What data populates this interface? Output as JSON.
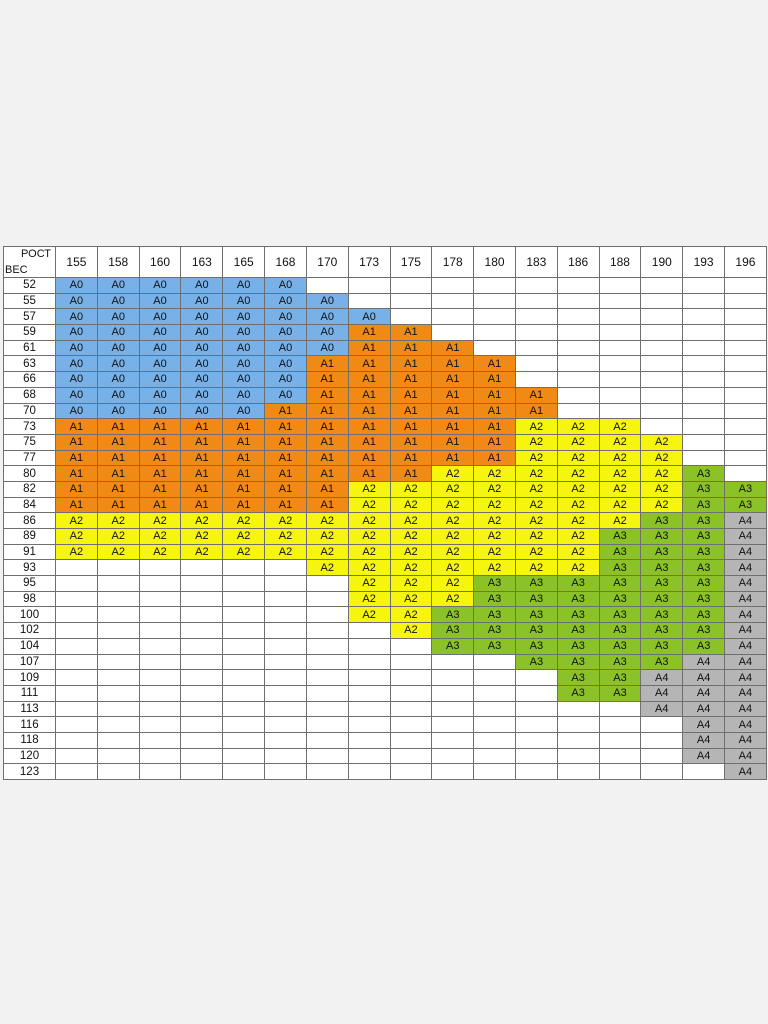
{
  "table": {
    "corner_top": "РОСТ",
    "corner_bottom": "ВЕС",
    "heights": [
      "155",
      "158",
      "160",
      "163",
      "165",
      "168",
      "170",
      "173",
      "175",
      "178",
      "180",
      "183",
      "186",
      "188",
      "190",
      "193",
      "196"
    ],
    "rows": [
      {
        "weight": "52",
        "cells": [
          "A0",
          "A0",
          "A0",
          "A0",
          "A0",
          "A0",
          "",
          "",
          "",
          "",
          "",
          "",
          "",
          "",
          "",
          "",
          ""
        ]
      },
      {
        "weight": "55",
        "cells": [
          "A0",
          "A0",
          "A0",
          "A0",
          "A0",
          "A0",
          "A0",
          "",
          "",
          "",
          "",
          "",
          "",
          "",
          "",
          "",
          ""
        ]
      },
      {
        "weight": "57",
        "cells": [
          "A0",
          "A0",
          "A0",
          "A0",
          "A0",
          "A0",
          "A0",
          "A0",
          "",
          "",
          "",
          "",
          "",
          "",
          "",
          "",
          ""
        ]
      },
      {
        "weight": "59",
        "cells": [
          "A0",
          "A0",
          "A0",
          "A0",
          "A0",
          "A0",
          "A0",
          "A1",
          "A1",
          "",
          "",
          "",
          "",
          "",
          "",
          "",
          ""
        ]
      },
      {
        "weight": "61",
        "cells": [
          "A0",
          "A0",
          "A0",
          "A0",
          "A0",
          "A0",
          "A0",
          "A1",
          "A1",
          "A1",
          "",
          "",
          "",
          "",
          "",
          "",
          ""
        ]
      },
      {
        "weight": "63",
        "cells": [
          "A0",
          "A0",
          "A0",
          "A0",
          "A0",
          "A0",
          "A1",
          "A1",
          "A1",
          "A1",
          "A1",
          "",
          "",
          "",
          "",
          "",
          ""
        ]
      },
      {
        "weight": "66",
        "cells": [
          "A0",
          "A0",
          "A0",
          "A0",
          "A0",
          "A0",
          "A1",
          "A1",
          "A1",
          "A1",
          "A1",
          "",
          "",
          "",
          "",
          "",
          ""
        ]
      },
      {
        "weight": "68",
        "cells": [
          "A0",
          "A0",
          "A0",
          "A0",
          "A0",
          "A0",
          "A1",
          "A1",
          "A1",
          "A1",
          "A1",
          "A1",
          "",
          "",
          "",
          "",
          ""
        ]
      },
      {
        "weight": "70",
        "cells": [
          "A0",
          "A0",
          "A0",
          "A0",
          "A0",
          "A1",
          "A1",
          "A1",
          "A1",
          "A1",
          "A1",
          "A1",
          "",
          "",
          "",
          "",
          ""
        ]
      },
      {
        "weight": "73",
        "cells": [
          "A1",
          "A1",
          "A1",
          "A1",
          "A1",
          "A1",
          "A1",
          "A1",
          "A1",
          "A1",
          "A1",
          "A2",
          "A2",
          "A2",
          "",
          "",
          ""
        ]
      },
      {
        "weight": "75",
        "cells": [
          "A1",
          "A1",
          "A1",
          "A1",
          "A1",
          "A1",
          "A1",
          "A1",
          "A1",
          "A1",
          "A1",
          "A2",
          "A2",
          "A2",
          "A2",
          "",
          ""
        ]
      },
      {
        "weight": "77",
        "cells": [
          "A1",
          "A1",
          "A1",
          "A1",
          "A1",
          "A1",
          "A1",
          "A1",
          "A1",
          "A1",
          "A1",
          "A2",
          "A2",
          "A2",
          "A2",
          "",
          ""
        ]
      },
      {
        "weight": "80",
        "cells": [
          "A1",
          "A1",
          "A1",
          "A1",
          "A1",
          "A1",
          "A1",
          "A1",
          "A1",
          "A2",
          "A2",
          "A2",
          "A2",
          "A2",
          "A2",
          "A3",
          ""
        ]
      },
      {
        "weight": "82",
        "cells": [
          "A1",
          "A1",
          "A1",
          "A1",
          "A1",
          "A1",
          "A1",
          "A2",
          "A2",
          "A2",
          "A2",
          "A2",
          "A2",
          "A2",
          "A2",
          "A3",
          "A3"
        ]
      },
      {
        "weight": "84",
        "cells": [
          "A1",
          "A1",
          "A1",
          "A1",
          "A1",
          "A1",
          "A1",
          "A2",
          "A2",
          "A2",
          "A2",
          "A2",
          "A2",
          "A2",
          "A2",
          "A3",
          "A3"
        ]
      },
      {
        "weight": "86",
        "cells": [
          "A2",
          "A2",
          "A2",
          "A2",
          "A2",
          "A2",
          "A2",
          "A2",
          "A2",
          "A2",
          "A2",
          "A2",
          "A2",
          "A2",
          "A3",
          "A3",
          "A4"
        ]
      },
      {
        "weight": "89",
        "cells": [
          "A2",
          "A2",
          "A2",
          "A2",
          "A2",
          "A2",
          "A2",
          "A2",
          "A2",
          "A2",
          "A2",
          "A2",
          "A2",
          "A3",
          "A3",
          "A3",
          "A4"
        ]
      },
      {
        "weight": "91",
        "cells": [
          "A2",
          "A2",
          "A2",
          "A2",
          "A2",
          "A2",
          "A2",
          "A2",
          "A2",
          "A2",
          "A2",
          "A2",
          "A2",
          "A3",
          "A3",
          "A3",
          "A4"
        ]
      },
      {
        "weight": "93",
        "cells": [
          "",
          "",
          "",
          "",
          "",
          "",
          "A2",
          "A2",
          "A2",
          "A2",
          "A2",
          "A2",
          "A2",
          "A3",
          "A3",
          "A3",
          "A4"
        ]
      },
      {
        "weight": "95",
        "cells": [
          "",
          "",
          "",
          "",
          "",
          "",
          "",
          "A2",
          "A2",
          "A2",
          "A3",
          "A3",
          "A3",
          "A3",
          "A3",
          "A3",
          "A4"
        ]
      },
      {
        "weight": "98",
        "cells": [
          "",
          "",
          "",
          "",
          "",
          "",
          "",
          "A2",
          "A2",
          "A2",
          "A3",
          "A3",
          "A3",
          "A3",
          "A3",
          "A3",
          "A4"
        ]
      },
      {
        "weight": "100",
        "cells": [
          "",
          "",
          "",
          "",
          "",
          "",
          "",
          "A2",
          "A2",
          "A3",
          "A3",
          "A3",
          "A3",
          "A3",
          "A3",
          "A3",
          "A4"
        ]
      },
      {
        "weight": "102",
        "cells": [
          "",
          "",
          "",
          "",
          "",
          "",
          "",
          "",
          "A2",
          "A3",
          "A3",
          "A3",
          "A3",
          "A3",
          "A3",
          "A3",
          "A4"
        ]
      },
      {
        "weight": "104",
        "cells": [
          "",
          "",
          "",
          "",
          "",
          "",
          "",
          "",
          "",
          "A3",
          "A3",
          "A3",
          "A3",
          "A3",
          "A3",
          "A3",
          "A4"
        ]
      },
      {
        "weight": "107",
        "cells": [
          "",
          "",
          "",
          "",
          "",
          "",
          "",
          "",
          "",
          "",
          "",
          "A3",
          "A3",
          "A3",
          "A3",
          "A4",
          "A4"
        ]
      },
      {
        "weight": "109",
        "cells": [
          "",
          "",
          "",
          "",
          "",
          "",
          "",
          "",
          "",
          "",
          "",
          "",
          "A3",
          "A3",
          "A4",
          "A4",
          "A4"
        ]
      },
      {
        "weight": "111",
        "cells": [
          "",
          "",
          "",
          "",
          "",
          "",
          "",
          "",
          "",
          "",
          "",
          "",
          "A3",
          "A3",
          "A4",
          "A4",
          "A4"
        ]
      },
      {
        "weight": "113",
        "cells": [
          "",
          "",
          "",
          "",
          "",
          "",
          "",
          "",
          "",
          "",
          "",
          "",
          "",
          "",
          "A4",
          "A4",
          "A4"
        ]
      },
      {
        "weight": "116",
        "cells": [
          "",
          "",
          "",
          "",
          "",
          "",
          "",
          "",
          "",
          "",
          "",
          "",
          "",
          "",
          "",
          "A4",
          "A4"
        ]
      },
      {
        "weight": "118",
        "cells": [
          "",
          "",
          "",
          "",
          "",
          "",
          "",
          "",
          "",
          "",
          "",
          "",
          "",
          "",
          "",
          "A4",
          "A4"
        ]
      },
      {
        "weight": "120",
        "cells": [
          "",
          "",
          "",
          "",
          "",
          "",
          "",
          "",
          "",
          "",
          "",
          "",
          "",
          "",
          "",
          "A4",
          "A4"
        ]
      },
      {
        "weight": "123",
        "cells": [
          "",
          "",
          "",
          "",
          "",
          "",
          "",
          "",
          "",
          "",
          "",
          "",
          "",
          "",
          "",
          "",
          "A4"
        ]
      }
    ]
  },
  "size_colors": {
    "A0": "#78b0e8",
    "A1": "#f08a14",
    "A2": "#f5f50e",
    "A3": "#8bc228",
    "A4": "#b5b5b5"
  }
}
